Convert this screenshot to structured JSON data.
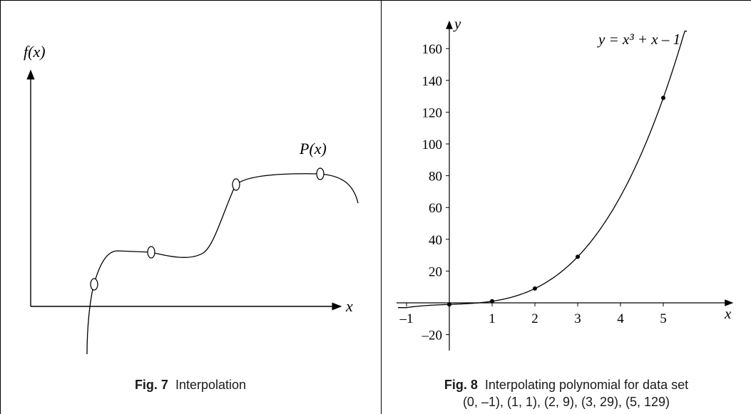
{
  "figures": [
    {
      "fig_label": "Fig. 7",
      "caption": "Interpolation",
      "chart_data": {
        "type": "line",
        "title": "",
        "xlabel": "x",
        "ylabel": "f(x)",
        "curve_label": "P(x)",
        "show_ticks": false,
        "grid": false,
        "legend": "none"
      }
    },
    {
      "fig_label": "Fig. 8",
      "caption_line1": "Interpolating polynomial for data set",
      "caption_line2": "(0, –1), (1, 1), (2, 9), (3, 29), (5, 129)",
      "chart_data": {
        "type": "line",
        "title": "",
        "xlabel": "x",
        "ylabel": "y",
        "equation": "y = x³ + x – 1",
        "xlim": [
          -1.2,
          5.6
        ],
        "ylim": [
          -25,
          170
        ],
        "x_ticks": [
          -1,
          1,
          2,
          3,
          4,
          5
        ],
        "x_tick_labels": [
          "–1",
          "1",
          "2",
          "3",
          "4",
          "5"
        ],
        "y_ticks": [
          -20,
          20,
          40,
          60,
          80,
          100,
          120,
          140,
          160
        ],
        "y_tick_labels": [
          "–20",
          "20",
          "40",
          "60",
          "80",
          "100",
          "120",
          "140",
          "160"
        ],
        "series": [
          {
            "function": "x^3 + x - 1",
            "x": [
              0,
              1,
              2,
              3,
              5
            ],
            "y": [
              -1,
              1,
              9,
              29,
              129
            ]
          }
        ],
        "grid": false,
        "legend": "none"
      }
    }
  ]
}
